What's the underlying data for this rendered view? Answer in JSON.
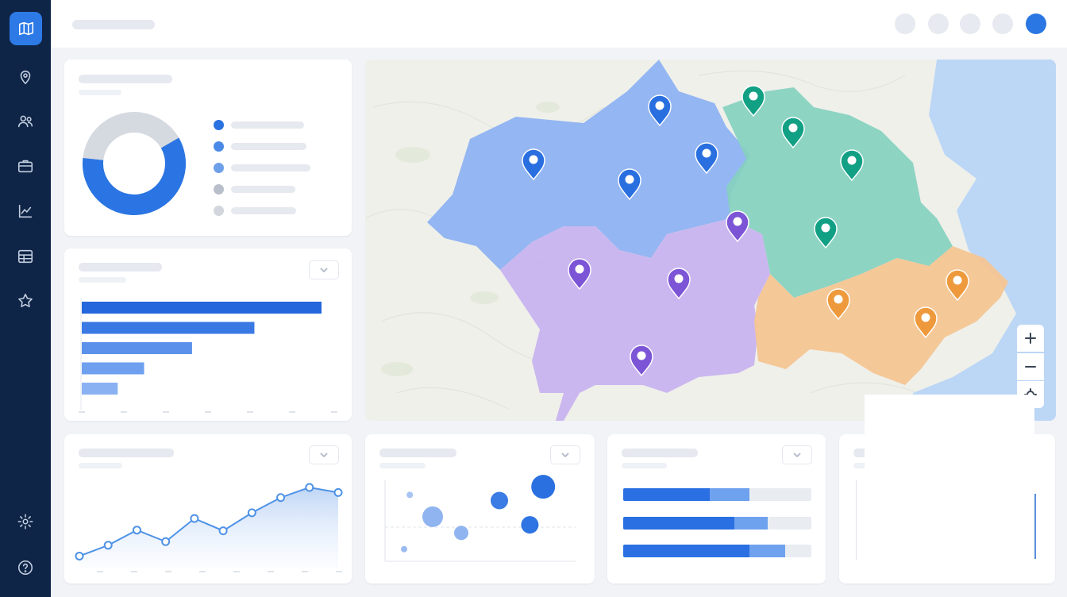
{
  "sidebar": {
    "logo_icon": "map-icon",
    "items": [
      "location-pin-icon",
      "users-icon",
      "briefcase-icon",
      "line-chart-icon",
      "table-icon",
      "star-icon"
    ],
    "bottom_items": [
      "settings-icon",
      "help-icon"
    ]
  },
  "topbar": {
    "icons": [
      "circle-icon",
      "circle-icon",
      "circle-icon",
      "circle-icon"
    ],
    "avatar_color": "#2a77e4"
  },
  "donut": {
    "fraction_blue": 0.6,
    "colors": [
      "#2a75e3",
      "#d5d9e0"
    ],
    "legend_dot_colors": [
      "#2a72e2",
      "#4a8ae6",
      "#6ea0ea",
      "#b8bfca",
      "#d2d6dd"
    ]
  },
  "bar_chart": {
    "values": [
      100,
      72,
      46,
      26,
      15
    ],
    "colors": [
      "#2466dc",
      "#3a79e4",
      "#5b91ea",
      "#6ea0ef",
      "#8ab2f2"
    ]
  },
  "line_chart": {
    "values": [
      5,
      20,
      41,
      25,
      57,
      40,
      65,
      86,
      100,
      93
    ],
    "color": "#4f92e6"
  },
  "scatter": {
    "points": [
      {
        "x": 0.1,
        "y": 0.15,
        "r": 4,
        "c": "#9bbcf0"
      },
      {
        "x": 0.13,
        "y": 0.82,
        "r": 4,
        "c": "#a8c4f2"
      },
      {
        "x": 0.25,
        "y": 0.55,
        "r": 13,
        "c": "#8fb4f0"
      },
      {
        "x": 0.4,
        "y": 0.35,
        "r": 9,
        "c": "#8fb4f0"
      },
      {
        "x": 0.6,
        "y": 0.75,
        "r": 11,
        "c": "#3a7be4"
      },
      {
        "x": 0.76,
        "y": 0.45,
        "r": 11,
        "c": "#2e74e2"
      },
      {
        "x": 0.83,
        "y": 0.92,
        "r": 15,
        "c": "#2a70e1"
      }
    ]
  },
  "progress": {
    "rows": [
      {
        "dark": 0.46,
        "light": 0.21
      },
      {
        "dark": 0.59,
        "light": 0.18
      },
      {
        "dark": 0.67,
        "light": 0.19
      }
    ],
    "colors": [
      "#2a70e2",
      "#6fa2ee",
      "#e9ecf1"
    ]
  },
  "map": {
    "zoom_in_icon": "plus-icon",
    "zoom_out_icon": "minus-icon",
    "locate_icon": "locate-icon",
    "region_colors": [
      "#8cb1f2",
      "#85d1bf",
      "#c8b3ef",
      "#f4c593"
    ],
    "water_color": "#bcd6f6",
    "pin_colors": {
      "blue": "#2a6fe0",
      "teal": "#12a085",
      "purple": "#7c55d6",
      "orange": "#ee9a3c"
    }
  }
}
